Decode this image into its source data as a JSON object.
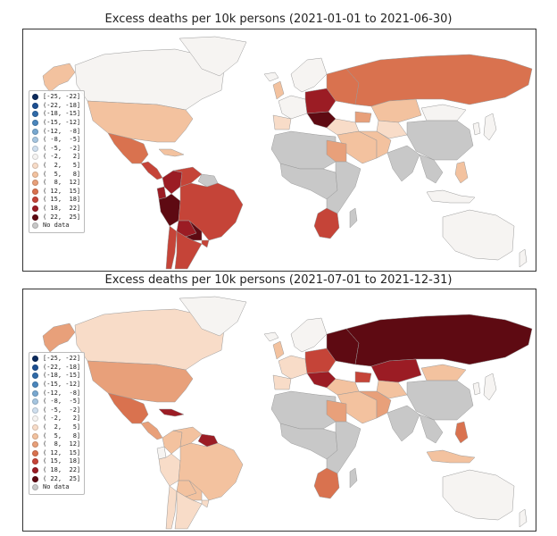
{
  "legend": {
    "bins": [
      {
        "label": "[-25, -22]",
        "color": "#0b2a5c"
      },
      {
        "label": "(-22, -18]",
        "color": "#1c4f91"
      },
      {
        "label": "(-18, -15]",
        "color": "#2f6aa8"
      },
      {
        "label": "(-15, -12]",
        "color": "#4a86bd"
      },
      {
        "label": "(-12,  -8]",
        "color": "#78a8d0"
      },
      {
        "label": "( -8,  -5]",
        "color": "#a6c6e0"
      },
      {
        "label": "( -5,  -2]",
        "color": "#cfdfee"
      },
      {
        "label": "( -2,   2]",
        "color": "#f6f4f2"
      },
      {
        "label": "(  2,   5]",
        "color": "#f8dcc8"
      },
      {
        "label": "(  5,   8]",
        "color": "#f3c29f"
      },
      {
        "label": "(  8,  12]",
        "color": "#e8a07a"
      },
      {
        "label": "( 12,  15]",
        "color": "#d9724f"
      },
      {
        "label": "( 15,  18]",
        "color": "#c54438"
      },
      {
        "label": "( 18,  22]",
        "color": "#9b1c24"
      },
      {
        "label": "( 22,  25]",
        "color": "#5e0a12"
      },
      {
        "label": "No data",
        "color": "#c8c8c8"
      }
    ]
  },
  "maps": [
    {
      "title": "Excess deaths per 10k persons (2021-01-01 to 2021-06-30)",
      "regions": {
        "alaska": "#f3c29f",
        "canada": "#f6f4f2",
        "greenland": "#f6f4f2",
        "usa": "#f3c29f",
        "mexico": "#d9724f",
        "central_america": "#c54438",
        "caribbean": "#f3c29f",
        "colombia": "#9b1c24",
        "venezuela": "#c54438",
        "guianas": "#c8c8c8",
        "ecuador": "#9b1c24",
        "peru": "#5e0a12",
        "brazil": "#c54438",
        "bolivia": "#9b1c24",
        "paraguay": "#5e0a12",
        "chile": "#c54438",
        "argentina": "#c54438",
        "uruguay": "#c54438",
        "iceland": "#f6f4f2",
        "scandinavia": "#f6f4f2",
        "western_europe": "#f6f4f2",
        "iberia": "#f8dcc8",
        "uk": "#f3c29f",
        "central_europe": "#9b1c24",
        "eastern_europe": "#d9724f",
        "balkans": "#5e0a12",
        "russia": "#d9724f",
        "turkey": "#f8dcc8",
        "caucasus": "#e8a07a",
        "kazakhstan": "#f3c29f",
        "central_asia": "#f8dcc8",
        "mongolia": "#f6f4f2",
        "china": "#c8c8c8",
        "india": "#c8c8c8",
        "middle_east": "#f3c29f",
        "iran": "#f3c29f",
        "egypt": "#e8a07a",
        "north_africa": "#c8c8c8",
        "sub_saharan": "#c8c8c8",
        "east_africa": "#c8c8c8",
        "south_africa": "#c54438",
        "madagascar": "#c8c8c8",
        "southeast_asia": "#c8c8c8",
        "philippines": "#f3c29f",
        "japan": "#f6f4f2",
        "korea": "#f6f4f2",
        "indonesia": "#f6f4f2",
        "australia": "#f6f4f2",
        "new_zealand": "#f6f4f2"
      }
    },
    {
      "title": "Excess deaths per 10k persons (2021-07-01 to 2021-12-31)",
      "regions": {
        "alaska": "#e8a07a",
        "canada": "#f8dcc8",
        "greenland": "#f6f4f2",
        "usa": "#e8a07a",
        "mexico": "#d9724f",
        "central_america": "#e8a07a",
        "caribbean": "#9b1c24",
        "colombia": "#f3c29f",
        "venezuela": "#f3c29f",
        "guianas": "#9b1c24",
        "ecuador": "#f6f4f2",
        "peru": "#f8dcc8",
        "brazil": "#f3c29f",
        "bolivia": "#f3c29f",
        "paraguay": "#f3c29f",
        "chile": "#f8dcc8",
        "argentina": "#f8dcc8",
        "uruguay": "#f8dcc8",
        "iceland": "#f6f4f2",
        "scandinavia": "#f6f4f2",
        "western_europe": "#f8dcc8",
        "iberia": "#f8dcc8",
        "uk": "#f3c29f",
        "central_europe": "#c54438",
        "eastern_europe": "#5e0a12",
        "balkans": "#9b1c24",
        "russia": "#5e0a12",
        "turkey": "#f3c29f",
        "caucasus": "#c54438",
        "kazakhstan": "#9b1c24",
        "central_asia": "#f3c29f",
        "mongolia": "#f3c29f",
        "china": "#c8c8c8",
        "india": "#c8c8c8",
        "middle_east": "#f3c29f",
        "iran": "#e8a07a",
        "egypt": "#e8a07a",
        "north_africa": "#c8c8c8",
        "sub_saharan": "#c8c8c8",
        "east_africa": "#c8c8c8",
        "south_africa": "#d9724f",
        "madagascar": "#c8c8c8",
        "southeast_asia": "#c8c8c8",
        "philippines": "#d9724f",
        "japan": "#f6f4f2",
        "korea": "#f6f4f2",
        "indonesia": "#f3c29f",
        "australia": "#f6f4f2",
        "new_zealand": "#f6f4f2"
      }
    }
  ]
}
